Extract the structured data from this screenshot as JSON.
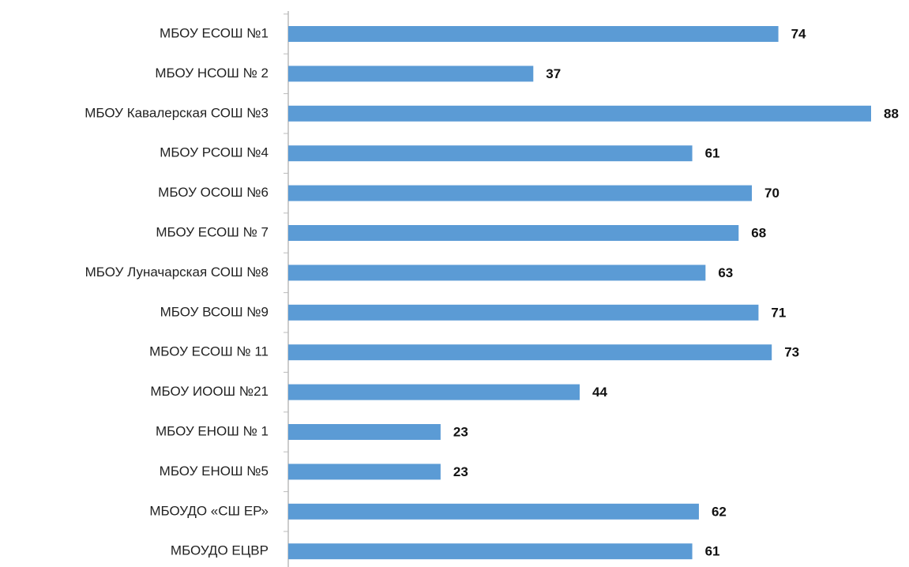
{
  "chart_data": {
    "type": "bar",
    "orientation": "horizontal",
    "categories": [
      "МБОУ ЕСОШ №1",
      "МБОУ НСОШ № 2",
      "МБОУ Кавалерская СОШ №3",
      "МБОУ РСОШ №4",
      "МБОУ ОСОШ №6",
      "МБОУ ЕСОШ № 7",
      "МБОУ Луначарская СОШ №8",
      "МБОУ ВСОШ №9",
      "МБОУ ЕСОШ № 11",
      "МБОУ ИООШ №21",
      "МБОУ ЕНОШ № 1",
      "МБОУ ЕНОШ №5",
      "МБОУДО «СШ ЕР»",
      "МБОУДО ЕЦВР"
    ],
    "values": [
      74,
      37,
      88,
      61,
      70,
      68,
      63,
      71,
      73,
      44,
      23,
      23,
      62,
      61
    ],
    "color": "#5b9bd5"
  }
}
